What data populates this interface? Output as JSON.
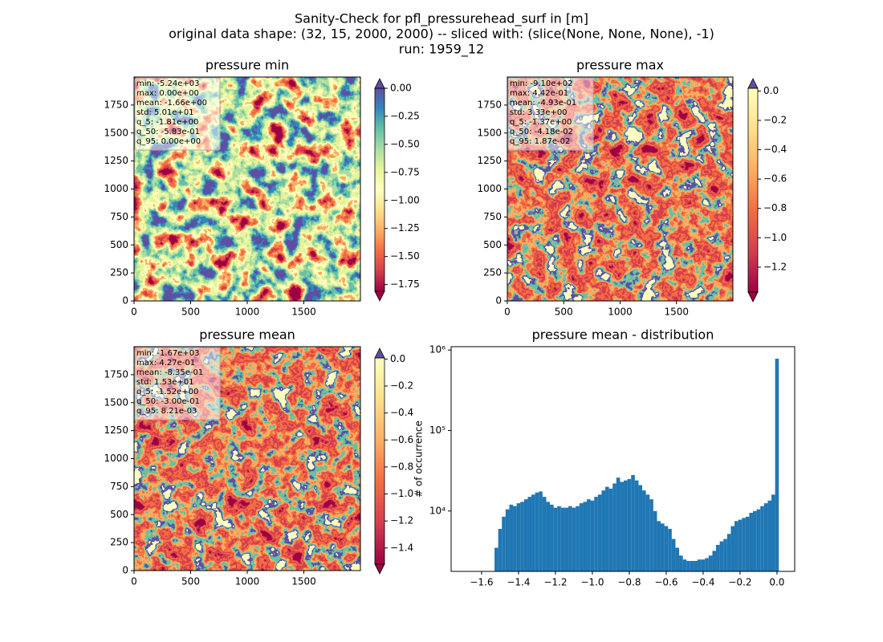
{
  "figure_title": [
    "Sanity-Check for pfl_pressurehead_surf in [m]",
    "original data shape: (32, 15, 2000, 2000) -- sliced with: (slice(None, None, None), -1)",
    "run: 1959_12"
  ],
  "chart_data": [
    {
      "type": "heatmap",
      "title": "pressure min",
      "xlim": [
        0,
        2000
      ],
      "ylim": [
        0,
        2000
      ],
      "xticks": [
        0,
        500,
        1000,
        1500
      ],
      "yticks": [
        0,
        250,
        500,
        750,
        1000,
        1250,
        1500,
        1750
      ],
      "stats": [
        "min: -5.24e+03",
        "max: 0.00e+00",
        "mean: -1.66e+00",
        "std: 5.01e+01",
        "q_5: -1.81e+00",
        "q_50: -5.83e-01",
        "q_95: 0.00e+00"
      ],
      "clim": [
        -1.81,
        0.0
      ],
      "cticks": [
        {
          "value": 0,
          "label": "0.00"
        },
        {
          "value": -0.25,
          "label": "−0.25"
        },
        {
          "value": -0.5,
          "label": "−0.50"
        },
        {
          "value": -0.75,
          "label": "−0.75"
        },
        {
          "value": -1,
          "label": "−1.00"
        },
        {
          "value": -1.25,
          "label": "−1.25"
        },
        {
          "value": -1.5,
          "label": "−1.50"
        },
        {
          "value": -1.75,
          "label": "−1.75"
        }
      ],
      "colorbar_colors": [
        "#9e0142",
        "#d53e4f",
        "#f46d43",
        "#fdae61",
        "#fee08b",
        "#ffffbf",
        "#e6f598",
        "#abdda4",
        "#66c2a5",
        "#3288bd",
        "#5e4fa2"
      ],
      "extend_colors": [
        "#9e0142",
        "#5e4fa2"
      ]
    },
    {
      "type": "heatmap",
      "title": "pressure max",
      "xlim": [
        0,
        2000
      ],
      "ylim": [
        0,
        2000
      ],
      "xticks": [
        0,
        500,
        1000,
        1500
      ],
      "yticks": [
        0,
        250,
        500,
        750,
        1000,
        1250,
        1500,
        1750
      ],
      "stats": [
        "min: -9.10e+02",
        "max: 4.42e-01",
        "mean: -4.93e-01",
        "std: 3.33e+00",
        "q_5: -1.37e+00",
        "q_50: -4.18e-02",
        "q_95: 1.87e-02"
      ],
      "clim": [
        -1.37,
        0.0187
      ],
      "cticks": [
        {
          "value": 0,
          "label": "0.0"
        },
        {
          "value": -0.2,
          "label": "−0.2"
        },
        {
          "value": -0.4,
          "label": "−0.4"
        },
        {
          "value": -0.6,
          "label": "−0.6"
        },
        {
          "value": -0.8,
          "label": "−0.8"
        },
        {
          "value": -1,
          "label": "−1.0"
        },
        {
          "value": -1.2,
          "label": "−1.2"
        }
      ],
      "colorbar_colors": [
        "#9e0142",
        "#d53e4f",
        "#f46d43",
        "#fdae61",
        "#fee08b",
        "#ffffbf"
      ],
      "extend_colors": [
        "#9e0142",
        "#5e4fa2"
      ]
    },
    {
      "type": "heatmap",
      "title": "pressure mean",
      "xlim": [
        0,
        2000
      ],
      "ylim": [
        0,
        2000
      ],
      "xticks": [
        0,
        500,
        1000,
        1500
      ],
      "yticks": [
        0,
        250,
        500,
        750,
        1000,
        1250,
        1500,
        1750
      ],
      "stats": [
        "min: -1.67e+03",
        "max: 4.27e-01",
        "mean: -8.35e-01",
        "std: 1.53e+01",
        "q_5: -1.52e+00",
        "q_50: -3.00e-01",
        "q_95: 8.21e-03"
      ],
      "clim": [
        -1.52,
        0.00821
      ],
      "cticks": [
        {
          "value": 0,
          "label": "0.0"
        },
        {
          "value": -0.2,
          "label": "−0.2"
        },
        {
          "value": -0.4,
          "label": "−0.4"
        },
        {
          "value": -0.6,
          "label": "−0.6"
        },
        {
          "value": -0.8,
          "label": "−0.8"
        },
        {
          "value": -1,
          "label": "−1.0"
        },
        {
          "value": -1.2,
          "label": "−1.2"
        },
        {
          "value": -1.4,
          "label": "−1.4"
        }
      ],
      "colorbar_colors": [
        "#9e0142",
        "#d53e4f",
        "#f46d43",
        "#fdae61",
        "#fee08b",
        "#ffffbf"
      ],
      "extend_colors": [
        "#9e0142",
        "#5e4fa2"
      ]
    },
    {
      "type": "histogram",
      "title": "pressure mean - distribution",
      "ylabel": "# of occurrence",
      "color": "#1f77b4",
      "log_y": true,
      "xlim": [
        -1.765,
        0.096
      ],
      "ylim": [
        1780,
        1100000
      ],
      "xticks": [
        {
          "value": -1.6,
          "label": "−1.6"
        },
        {
          "value": -1.4,
          "label": "−1.4"
        },
        {
          "value": -1.2,
          "label": "−1.2"
        },
        {
          "value": -1,
          "label": "−1.0"
        },
        {
          "value": -0.8,
          "label": "−0.8"
        },
        {
          "value": -0.6,
          "label": "−0.6"
        },
        {
          "value": -0.4,
          "label": "−0.4"
        },
        {
          "value": -0.2,
          "label": "−0.2"
        },
        {
          "value": 0,
          "label": "0.0"
        }
      ],
      "yticks": [
        {
          "value": 10000,
          "label": "10⁴"
        },
        {
          "value": 100000,
          "label": "10⁵"
        },
        {
          "value": 1000000,
          "label": "10⁶"
        }
      ],
      "bins": [
        -1.53,
        -1.51,
        -1.49,
        -1.47,
        -1.45,
        -1.43,
        -1.41,
        -1.39,
        -1.37,
        -1.35,
        -1.33,
        -1.31,
        -1.29,
        -1.27,
        -1.25,
        -1.23,
        -1.21,
        -1.19,
        -1.17,
        -1.15,
        -1.13,
        -1.11,
        -1.09,
        -1.07,
        -1.05,
        -1.03,
        -1.01,
        -0.99,
        -0.97,
        -0.95,
        -0.93,
        -0.91,
        -0.89,
        -0.87,
        -0.85,
        -0.83,
        -0.81,
        -0.79,
        -0.77,
        -0.75,
        -0.73,
        -0.71,
        -0.69,
        -0.67,
        -0.65,
        -0.63,
        -0.61,
        -0.59,
        -0.57,
        -0.55,
        -0.53,
        -0.51,
        -0.49,
        -0.47,
        -0.45,
        -0.43,
        -0.41,
        -0.39,
        -0.37,
        -0.35,
        -0.33,
        -0.31,
        -0.29,
        -0.27,
        -0.25,
        -0.23,
        -0.21,
        -0.19,
        -0.17,
        -0.15,
        -0.13,
        -0.11,
        -0.09,
        -0.07,
        -0.05,
        -0.03,
        -0.01,
        0.01
      ],
      "values": [
        3500,
        6000,
        8500,
        10500,
        12000,
        11500,
        12500,
        13000,
        14000,
        15000,
        16000,
        17000,
        17500,
        15000,
        13000,
        12000,
        11000,
        11500,
        11000,
        11000,
        11500,
        11000,
        11500,
        12500,
        13000,
        14000,
        13500,
        15000,
        16000,
        18000,
        20000,
        19000,
        22000,
        26000,
        23000,
        24000,
        25000,
        28000,
        24000,
        21000,
        18000,
        16000,
        14000,
        10000,
        7500,
        7000,
        6500,
        6000,
        4500,
        3500,
        2800,
        2500,
        2400,
        2400,
        2400,
        2500,
        2500,
        2600,
        2800,
        3200,
        3800,
        4200,
        4500,
        5200,
        6500,
        7500,
        7800,
        8200,
        8500,
        9500,
        10000,
        10500,
        11500,
        12500,
        13500,
        16000,
        780000
      ]
    }
  ]
}
